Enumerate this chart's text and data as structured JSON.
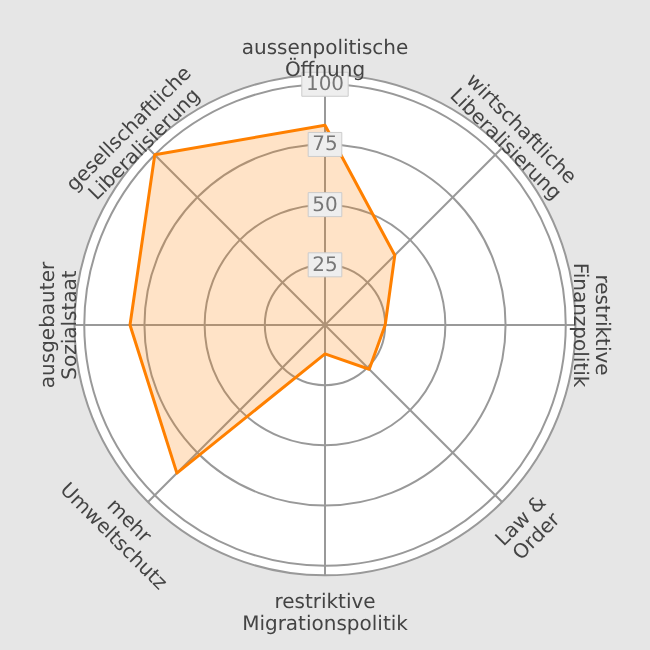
{
  "chart_data": {
    "type": "radar",
    "categories": [
      "aussenpolitische Öffnung",
      "wirtschaftliche Liberalisierung",
      "restriktive Finanzpolitik",
      "Law & Order",
      "restriktive Migrationspolitik",
      "mehr Umweltschutz",
      "ausgebauter Sozialstaat",
      "gesellschaftliche Liberalisierung"
    ],
    "series": [
      {
        "color": "#ff8000",
        "values": [
          83,
          41,
          25,
          26,
          12,
          87,
          81,
          100
        ]
      }
    ],
    "ylim": [
      0,
      104
    ],
    "yticks": [
      25,
      50,
      75,
      100
    ],
    "grid": true
  }
}
